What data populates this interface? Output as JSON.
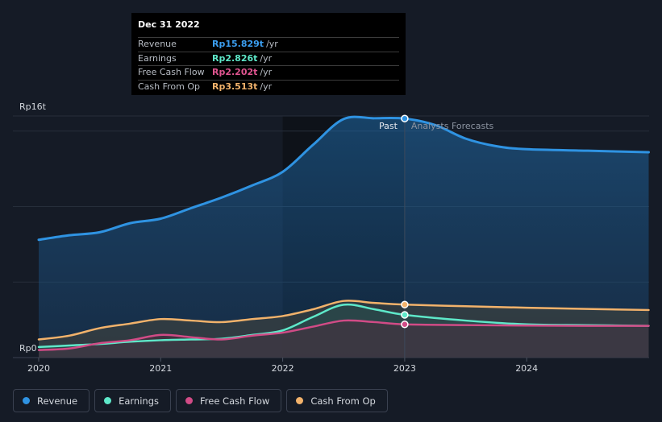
{
  "colors": {
    "revenue": "#2f93e2",
    "earnings": "#5ee8c9",
    "free_cash_flow": "#d14b86",
    "cash_from_op": "#f2b26b",
    "background": "#151b26",
    "grid": "#2b3340"
  },
  "tooltip": {
    "date": "Dec 31 2022",
    "rows": [
      {
        "label": "Revenue",
        "value": "Rp15.829t",
        "unit": "/yr",
        "color": "#3b9ef0"
      },
      {
        "label": "Earnings",
        "value": "Rp2.826t",
        "unit": "/yr",
        "color": "#5ee8c9"
      },
      {
        "label": "Free Cash Flow",
        "value": "Rp2.202t",
        "unit": "/yr",
        "color": "#e05590"
      },
      {
        "label": "Cash From Op",
        "value": "Rp3.513t",
        "unit": "/yr",
        "color": "#f2b26b"
      }
    ]
  },
  "legend": [
    {
      "label": "Revenue",
      "color": "#2f93e2"
    },
    {
      "label": "Earnings",
      "color": "#5ee8c9"
    },
    {
      "label": "Free Cash Flow",
      "color": "#d14b86"
    },
    {
      "label": "Cash From Op",
      "color": "#f2b26b"
    }
  ],
  "chart_data": {
    "type": "area",
    "title": "",
    "xlabel": "",
    "ylabel": "",
    "y_unit": "Rp trillion",
    "y_tick_labels": {
      "top": "Rp16t",
      "bottom": "Rp0"
    },
    "ylim": [
      0,
      16
    ],
    "xlim": [
      2020.0,
      2025.0
    ],
    "x_ticks": [
      2020,
      2021,
      2022,
      2023,
      2024
    ],
    "x_tick_labels": [
      "2020",
      "2021",
      "2022",
      "2023",
      "2024"
    ],
    "divider": {
      "x": 2023.0,
      "past_label": "Past",
      "forecast_label": "Analysts Forecasts"
    },
    "highlight_range": [
      2022.0,
      2023.0
    ],
    "series": [
      {
        "name": "Revenue",
        "x": [
          2020.0,
          2020.25,
          2020.5,
          2020.75,
          2021.0,
          2021.25,
          2021.5,
          2021.75,
          2022.0,
          2022.25,
          2022.5,
          2022.75,
          2023.0,
          2023.25,
          2023.5,
          2023.75,
          2024.0,
          2024.5,
          2025.0
        ],
        "y": [
          7.8,
          8.1,
          8.3,
          8.9,
          9.2,
          9.9,
          10.6,
          11.4,
          12.3,
          14.1,
          15.8,
          15.85,
          15.83,
          15.4,
          14.5,
          14.0,
          13.8,
          13.7,
          13.6
        ]
      },
      {
        "name": "Earnings",
        "x": [
          2020.0,
          2020.25,
          2020.5,
          2020.75,
          2021.0,
          2021.25,
          2021.5,
          2021.75,
          2022.0,
          2022.25,
          2022.5,
          2022.75,
          2023.0,
          2023.5,
          2024.0,
          2024.5,
          2025.0
        ],
        "y": [
          0.7,
          0.8,
          0.9,
          1.05,
          1.15,
          1.2,
          1.25,
          1.5,
          1.8,
          2.7,
          3.5,
          3.2,
          2.83,
          2.45,
          2.2,
          2.15,
          2.1
        ]
      },
      {
        "name": "Free Cash Flow",
        "x": [
          2020.0,
          2020.25,
          2020.5,
          2020.75,
          2021.0,
          2021.25,
          2021.5,
          2021.75,
          2022.0,
          2022.25,
          2022.5,
          2022.75,
          2023.0,
          2023.5,
          2024.0,
          2024.5,
          2025.0
        ],
        "y": [
          0.5,
          0.6,
          0.95,
          1.15,
          1.5,
          1.35,
          1.2,
          1.45,
          1.65,
          2.05,
          2.45,
          2.35,
          2.2,
          2.15,
          2.12,
          2.1,
          2.1
        ]
      },
      {
        "name": "Cash From Op",
        "x": [
          2020.0,
          2020.25,
          2020.5,
          2020.75,
          2021.0,
          2021.25,
          2021.5,
          2021.75,
          2022.0,
          2022.25,
          2022.5,
          2022.75,
          2023.0,
          2023.5,
          2024.0,
          2024.5,
          2025.0
        ],
        "y": [
          1.2,
          1.45,
          1.95,
          2.25,
          2.55,
          2.45,
          2.35,
          2.55,
          2.75,
          3.2,
          3.75,
          3.62,
          3.51,
          3.4,
          3.3,
          3.22,
          3.15
        ]
      }
    ],
    "markers_at_x": 2023.0
  }
}
